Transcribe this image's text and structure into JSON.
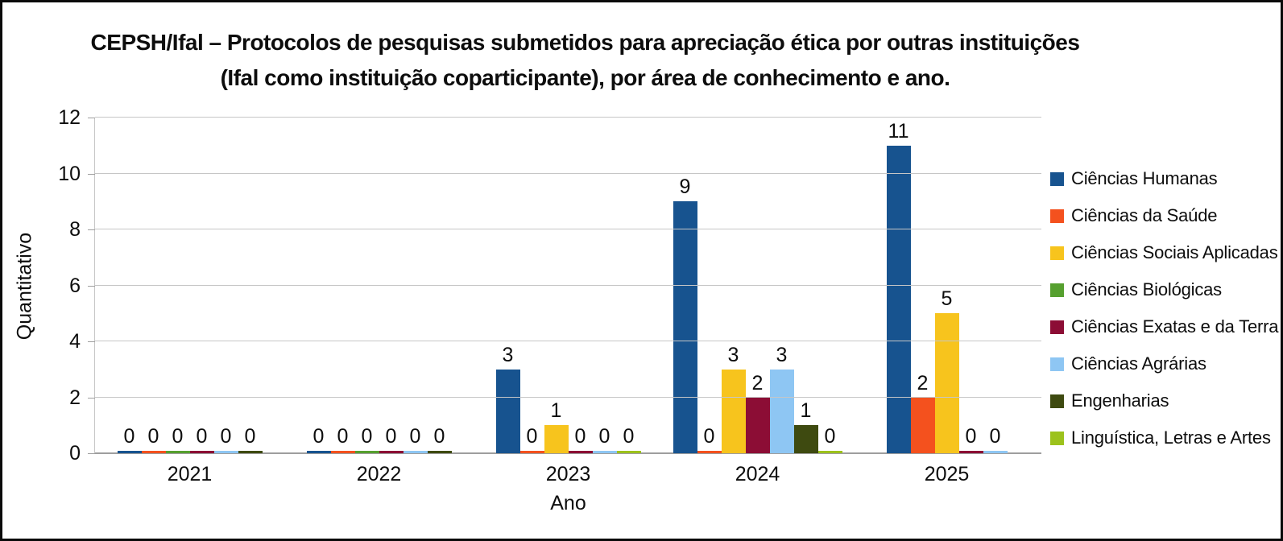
{
  "frame": {
    "background": "#ffffff",
    "border_color": "#0a0a0a"
  },
  "chart_data": {
    "type": "bar",
    "title_line1": "CEPSH/Ifal – Protocolos de pesquisas submetidos para apreciação ética por outras instituições",
    "title_line2": "(Ifal como instituição coparticipante), por área de conhecimento e ano.",
    "xlabel": "Ano",
    "ylabel": "Quantitativo",
    "ylim": [
      0,
      12
    ],
    "yticks": [
      0,
      2,
      4,
      6,
      8,
      10,
      12
    ],
    "grid": "horizontal",
    "legend_position": "right",
    "data_labels": true,
    "categories": [
      "2021",
      "2022",
      "2023",
      "2024",
      "2025"
    ],
    "series": [
      {
        "name": "Ciências Humanas",
        "color": "#17538F"
      },
      {
        "name": "Ciências da Saúde",
        "color": "#F4511E"
      },
      {
        "name": "Ciências Sociais Aplicadas",
        "color": "#F7C41D"
      },
      {
        "name": "Ciências Biológicas",
        "color": "#56A02F"
      },
      {
        "name": "Ciências Exatas e da Terra",
        "color": "#8C0D35"
      },
      {
        "name": "Ciências Agrárias",
        "color": "#8EC6F3"
      },
      {
        "name": "Engenharias",
        "color": "#3E4A10"
      },
      {
        "name": "Linguística, Letras e Artes",
        "color": "#9CC21C"
      }
    ],
    "groups": [
      {
        "category": "2021",
        "bars": [
          {
            "series": 0,
            "value": 0
          },
          {
            "series": 1,
            "value": 0
          },
          {
            "series": 3,
            "value": 0
          },
          {
            "series": 4,
            "value": 0
          },
          {
            "series": 5,
            "value": 0
          },
          {
            "series": 6,
            "value": 0
          }
        ]
      },
      {
        "category": "2022",
        "bars": [
          {
            "series": 0,
            "value": 0
          },
          {
            "series": 1,
            "value": 0
          },
          {
            "series": 3,
            "value": 0
          },
          {
            "series": 4,
            "value": 0
          },
          {
            "series": 5,
            "value": 0
          },
          {
            "series": 6,
            "value": 0
          }
        ]
      },
      {
        "category": "2023",
        "bars": [
          {
            "series": 0,
            "value": 3
          },
          {
            "series": 1,
            "value": 0
          },
          {
            "series": 2,
            "value": 1
          },
          {
            "series": 4,
            "value": 0
          },
          {
            "series": 5,
            "value": 0
          },
          {
            "series": 7,
            "value": 0
          }
        ]
      },
      {
        "category": "2024",
        "bars": [
          {
            "series": 0,
            "value": 9
          },
          {
            "series": 1,
            "value": 0
          },
          {
            "series": 2,
            "value": 3
          },
          {
            "series": 4,
            "value": 2
          },
          {
            "series": 5,
            "value": 3
          },
          {
            "series": 6,
            "value": 1
          },
          {
            "series": 7,
            "value": 0
          }
        ]
      },
      {
        "category": "2025",
        "bars": [
          {
            "series": 0,
            "value": 11
          },
          {
            "series": 1,
            "value": 2
          },
          {
            "series": 2,
            "value": 5
          },
          {
            "series": 4,
            "value": 0
          },
          {
            "series": 5,
            "value": 0
          }
        ]
      }
    ]
  }
}
